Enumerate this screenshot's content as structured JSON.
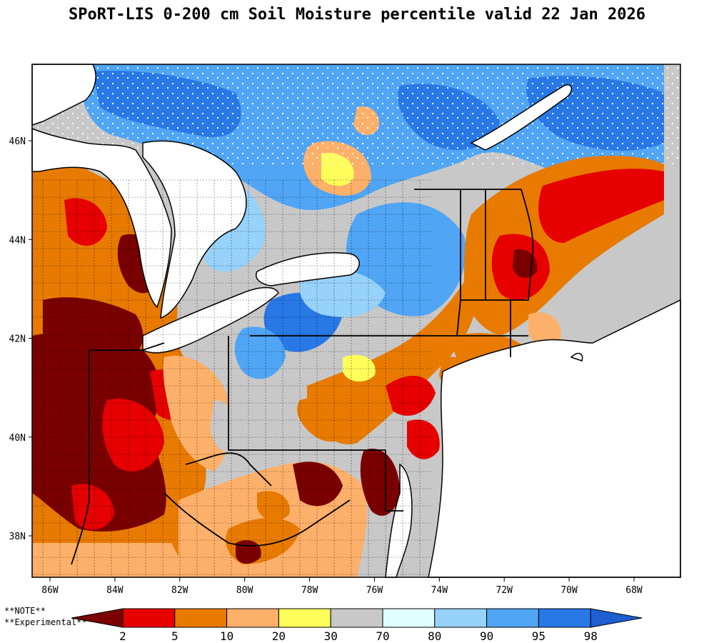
{
  "title": "SPoRT-LIS 0-200 cm Soil Moisture percentile valid 22 Jan 2026",
  "notes": [
    "**NOTE**",
    "**Experimental**"
  ],
  "lat_ticks": [
    {
      "label": "46N",
      "value": 46
    },
    {
      "label": "44N",
      "value": 44
    },
    {
      "label": "42N",
      "value": 42
    },
    {
      "label": "40N",
      "value": 40
    },
    {
      "label": "38N",
      "value": 38
    }
  ],
  "lon_ticks": [
    {
      "label": "86W",
      "value": -86
    },
    {
      "label": "84W",
      "value": -84
    },
    {
      "label": "82W",
      "value": -82
    },
    {
      "label": "80W",
      "value": -80
    },
    {
      "label": "78W",
      "value": -78
    },
    {
      "label": "76W",
      "value": -76
    },
    {
      "label": "74W",
      "value": -74
    },
    {
      "label": "72W",
      "value": -72
    },
    {
      "label": "70W",
      "value": -70
    },
    {
      "label": "68W",
      "value": -68
    }
  ],
  "colorbar": {
    "colors": [
      "#7a0000",
      "#e60000",
      "#e87a00",
      "#fdb06a",
      "#fefe5a",
      "#c8c8c8",
      "#e0feff",
      "#96d2fa",
      "#50a5f5",
      "#2878e6",
      "#1e5fd2"
    ],
    "labels": [
      "2",
      "5",
      "10",
      "20",
      "30",
      "70",
      "80",
      "90",
      "95",
      "98"
    ]
  },
  "legend_colors": {
    "water": "#ffffff",
    "border": "#000000"
  }
}
